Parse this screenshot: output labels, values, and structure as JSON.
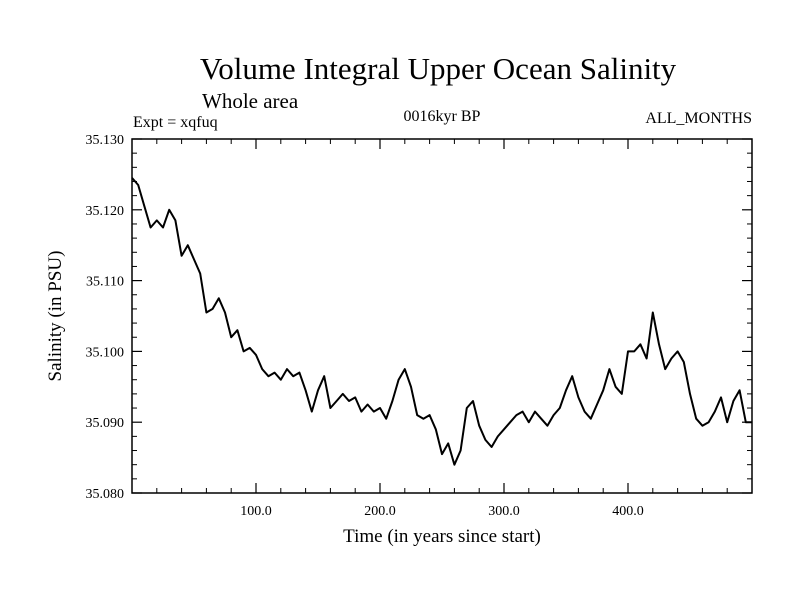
{
  "chart_data": {
    "type": "line",
    "title": "Volume Integral Upper Ocean Salinity",
    "subtitle": "Whole area",
    "expt_label": "Expt = xqfuq",
    "period_label": "0016kyr BP",
    "months_label": "ALL_MONTHS",
    "xlabel": "Time (in years since start)",
    "ylabel": "Salinity (in PSU)",
    "xlim": [
      0,
      500
    ],
    "ylim": [
      35.08,
      35.13
    ],
    "x_ticks": [
      100,
      200,
      300,
      400
    ],
    "x_tick_labels": [
      "100.0",
      "200.0",
      "300.0",
      "400.0"
    ],
    "y_ticks": [
      35.08,
      35.09,
      35.1,
      35.11,
      35.12,
      35.13
    ],
    "y_tick_labels": [
      "35.080",
      "35.090",
      "35.100",
      "35.110",
      "35.120",
      "35.130"
    ],
    "grid": false,
    "series": [
      {
        "name": "Salinity",
        "x": [
          0,
          5,
          10,
          15,
          20,
          25,
          30,
          35,
          40,
          45,
          50,
          55,
          60,
          65,
          70,
          75,
          80,
          85,
          90,
          95,
          100,
          105,
          110,
          115,
          120,
          125,
          130,
          135,
          140,
          145,
          150,
          155,
          160,
          165,
          170,
          175,
          180,
          185,
          190,
          195,
          200,
          205,
          210,
          215,
          220,
          225,
          230,
          235,
          240,
          245,
          250,
          255,
          260,
          265,
          270,
          275,
          280,
          285,
          290,
          295,
          300,
          305,
          310,
          315,
          320,
          325,
          330,
          335,
          340,
          345,
          350,
          355,
          360,
          365,
          370,
          375,
          380,
          385,
          390,
          395,
          400,
          405,
          410,
          415,
          420,
          425,
          430,
          435,
          440,
          445,
          450,
          455,
          460,
          465,
          470,
          475,
          480,
          485,
          490,
          495,
          500
        ],
        "values": [
          35.1245,
          35.1235,
          35.1205,
          35.1175,
          35.1185,
          35.1175,
          35.12,
          35.1185,
          35.1135,
          35.115,
          35.113,
          35.111,
          35.1055,
          35.106,
          35.1075,
          35.1055,
          35.102,
          35.103,
          35.1,
          35.1005,
          35.0995,
          35.0975,
          35.0965,
          35.097,
          35.096,
          35.0975,
          35.0965,
          35.097,
          35.0945,
          35.0915,
          35.0945,
          35.0965,
          35.092,
          35.093,
          35.094,
          35.093,
          35.0935,
          35.0915,
          35.0925,
          35.0915,
          35.092,
          35.0905,
          35.093,
          35.096,
          35.0975,
          35.095,
          35.091,
          35.0905,
          35.091,
          35.089,
          35.0855,
          35.087,
          35.084,
          35.086,
          35.092,
          35.093,
          35.0895,
          35.0875,
          35.0865,
          35.088,
          35.089,
          35.09,
          35.091,
          35.0915,
          35.09,
          35.0915,
          35.0905,
          35.0895,
          35.091,
          35.092,
          35.0945,
          35.0965,
          35.0935,
          35.0915,
          35.0905,
          35.0925,
          35.0945,
          35.0975,
          35.095,
          35.094,
          35.1,
          35.1,
          35.101,
          35.099,
          35.1055,
          35.101,
          35.0975,
          35.099,
          35.1,
          35.0985,
          35.094,
          35.0905,
          35.0895,
          35.09,
          35.0915,
          35.0935,
          35.09,
          35.093,
          35.0945,
          35.09,
          35.09
        ]
      }
    ]
  }
}
